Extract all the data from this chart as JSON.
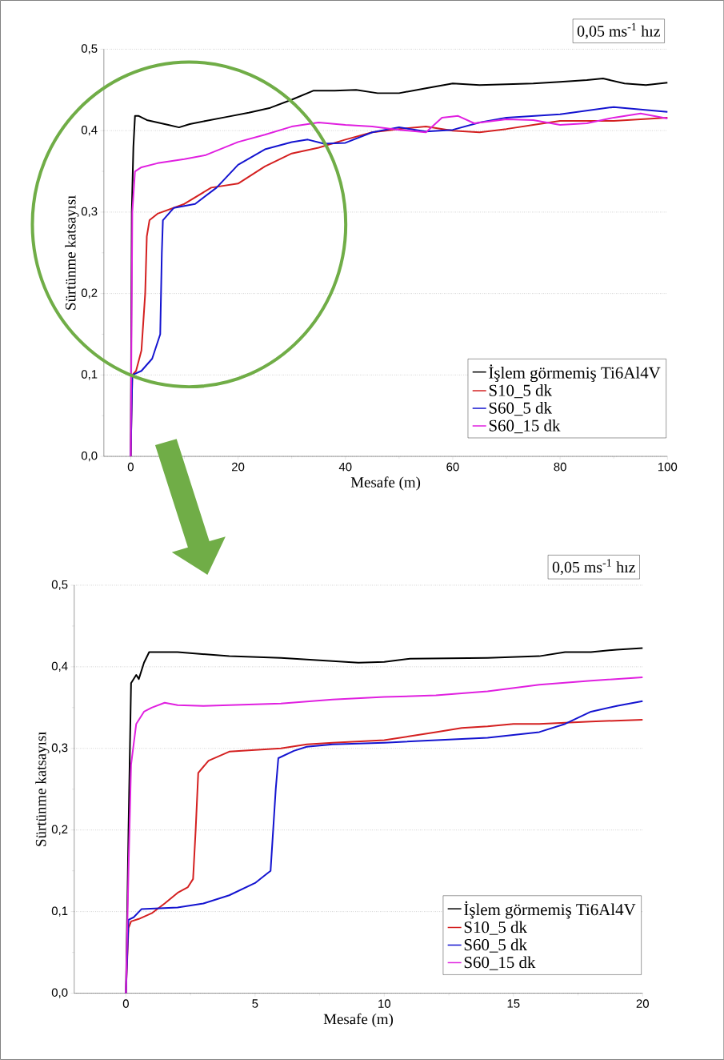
{
  "chart_data": [
    {
      "type": "line",
      "xlabel": "Mesafe (m)",
      "ylabel": "Sürtünme katsayısı",
      "annotations": [
        "0,05 ms$^{-1}$ hız"
      ],
      "xlim": [
        -5,
        100
      ],
      "ylim": [
        0,
        0.5
      ],
      "xticks": [
        0,
        20,
        40,
        60,
        80,
        100
      ],
      "yticks": [
        {
          "value": 0,
          "label": "0,0"
        },
        {
          "value": 0.1,
          "label": "0,1"
        },
        {
          "value": 0.2,
          "label": "0,2"
        },
        {
          "value": 0.3,
          "label": "0,3"
        },
        {
          "value": 0.4,
          "label": "0,4"
        },
        {
          "value": 0.5,
          "label": "0,5"
        }
      ],
      "grid": "y",
      "legend": "bottom right",
      "line_style": "solid",
      "series": [
        {
          "name": "İşlem görmemiş Ti6Al4V",
          "color": "#000000",
          "x": [
            0,
            0.2,
            0.5,
            0.8,
            1.5,
            3,
            5,
            7,
            9,
            11,
            14,
            18,
            22,
            26,
            30,
            34,
            38,
            42,
            46,
            50,
            55,
            60,
            65,
            70,
            75,
            80,
            85,
            88,
            92,
            96,
            100
          ],
          "values": [
            0,
            0.3,
            0.38,
            0.418,
            0.418,
            0.413,
            0.41,
            0.407,
            0.404,
            0.408,
            0.412,
            0.417,
            0.422,
            0.428,
            0.438,
            0.449,
            0.449,
            0.45,
            0.446,
            0.446,
            0.452,
            0.458,
            0.456,
            0.457,
            0.458,
            0.46,
            0.462,
            0.464,
            0.458,
            0.456,
            0.459
          ]
        },
        {
          "name": "S10_5 dk",
          "color": "#d42020",
          "x": [
            0,
            0.3,
            1,
            2,
            2.7,
            3,
            3.5,
            5,
            10,
            15,
            20,
            25,
            30,
            35,
            40,
            45,
            50,
            55,
            60,
            65,
            70,
            75,
            80,
            85,
            90,
            95,
            100
          ],
          "values": [
            0,
            0.1,
            0.105,
            0.13,
            0.2,
            0.27,
            0.29,
            0.298,
            0.31,
            0.33,
            0.335,
            0.356,
            0.372,
            0.379,
            0.389,
            0.398,
            0.402,
            0.405,
            0.4,
            0.398,
            0.402,
            0.407,
            0.412,
            0.412,
            0.412,
            0.414,
            0.416
          ]
        },
        {
          "name": "S60_5 dk",
          "color": "#1414d0",
          "x": [
            0,
            0.3,
            2,
            4,
            5.5,
            5.8,
            6,
            8,
            12,
            16,
            20,
            25,
            30,
            33,
            36,
            40,
            45,
            50,
            55,
            60,
            65,
            70,
            80,
            90,
            95,
            100
          ],
          "values": [
            0,
            0.1,
            0.105,
            0.12,
            0.15,
            0.25,
            0.29,
            0.305,
            0.31,
            0.33,
            0.358,
            0.377,
            0.386,
            0.389,
            0.384,
            0.385,
            0.398,
            0.404,
            0.399,
            0.401,
            0.41,
            0.416,
            0.42,
            0.429,
            0.426,
            0.423
          ]
        },
        {
          "name": "S60_15 dk",
          "color": "#e020e0",
          "x": [
            0,
            0.3,
            0.8,
            2,
            5,
            10,
            14,
            20,
            25,
            30,
            35,
            40,
            45,
            50,
            55,
            58,
            61,
            64,
            70,
            75,
            80,
            85,
            90,
            95,
            100
          ],
          "values": [
            0,
            0.3,
            0.35,
            0.355,
            0.36,
            0.365,
            0.37,
            0.386,
            0.395,
            0.405,
            0.41,
            0.407,
            0.405,
            0.401,
            0.398,
            0.416,
            0.418,
            0.409,
            0.414,
            0.413,
            0.407,
            0.409,
            0.416,
            0.421,
            0.415
          ]
        }
      ]
    },
    {
      "type": "line",
      "xlabel": "Mesafe (m)",
      "ylabel": "Sürtünme katsayısı",
      "annotations": [
        "0,05 ms$^{-1}$ hız"
      ],
      "xlim": [
        -2,
        20
      ],
      "ylim": [
        0,
        0.5
      ],
      "xticks": [
        0,
        5,
        10,
        15,
        20
      ],
      "yticks": [
        {
          "value": 0,
          "label": "0,0"
        },
        {
          "value": 0.1,
          "label": "0,1"
        },
        {
          "value": 0.2,
          "label": "0,2"
        },
        {
          "value": 0.3,
          "label": "0,3"
        },
        {
          "value": 0.4,
          "label": "0,4"
        },
        {
          "value": 0.5,
          "label": "0,5"
        }
      ],
      "grid": "y",
      "legend": "bottom right",
      "line_style": "solid",
      "series": [
        {
          "name": "İşlem görmemiş Ti6Al4V",
          "color": "#000000",
          "x": [
            0,
            0.1,
            0.2,
            0.4,
            0.5,
            0.7,
            0.9,
            2,
            4,
            6,
            8,
            9,
            10,
            11,
            14,
            16,
            17,
            18,
            19,
            20
          ],
          "values": [
            0,
            0.2,
            0.38,
            0.39,
            0.385,
            0.405,
            0.418,
            0.418,
            0.413,
            0.411,
            0.407,
            0.405,
            0.406,
            0.41,
            0.411,
            0.413,
            0.418,
            0.418,
            0.421,
            0.423
          ]
        },
        {
          "name": "S10_5 dk",
          "color": "#d42020",
          "x": [
            0,
            0.1,
            0.2,
            0.5,
            1,
            1.5,
            2,
            2.4,
            2.6,
            2.7,
            2.8,
            3.2,
            4,
            5,
            6,
            7,
            8,
            10,
            11,
            12,
            13,
            14,
            15,
            16,
            18,
            20
          ],
          "values": [
            0,
            0.08,
            0.088,
            0.091,
            0.098,
            0.11,
            0.123,
            0.13,
            0.14,
            0.2,
            0.27,
            0.285,
            0.296,
            0.298,
            0.3,
            0.305,
            0.307,
            0.31,
            0.315,
            0.32,
            0.325,
            0.327,
            0.33,
            0.33,
            0.333,
            0.335
          ]
        },
        {
          "name": "S60_5 dk",
          "color": "#1414d0",
          "x": [
            0,
            0.1,
            0.3,
            0.6,
            2,
            3,
            4,
            5,
            5.4,
            5.6,
            5.8,
            5.9,
            6.5,
            7,
            8,
            10,
            12,
            14,
            16,
            17,
            18,
            19,
            20
          ],
          "values": [
            0,
            0.09,
            0.093,
            0.103,
            0.105,
            0.11,
            0.12,
            0.135,
            0.145,
            0.15,
            0.25,
            0.288,
            0.297,
            0.302,
            0.305,
            0.307,
            0.31,
            0.313,
            0.32,
            0.33,
            0.345,
            0.352,
            0.358
          ]
        },
        {
          "name": "S60_15 dk",
          "color": "#e020e0",
          "x": [
            0,
            0.1,
            0.2,
            0.4,
            0.7,
            1,
            1.5,
            2,
            3,
            4,
            6,
            8,
            10,
            12,
            14,
            16,
            18,
            20
          ],
          "values": [
            0,
            0.15,
            0.28,
            0.33,
            0.345,
            0.35,
            0.356,
            0.353,
            0.352,
            0.353,
            0.355,
            0.36,
            0.363,
            0.365,
            0.37,
            0.378,
            0.383,
            0.387
          ]
        }
      ]
    }
  ]
}
